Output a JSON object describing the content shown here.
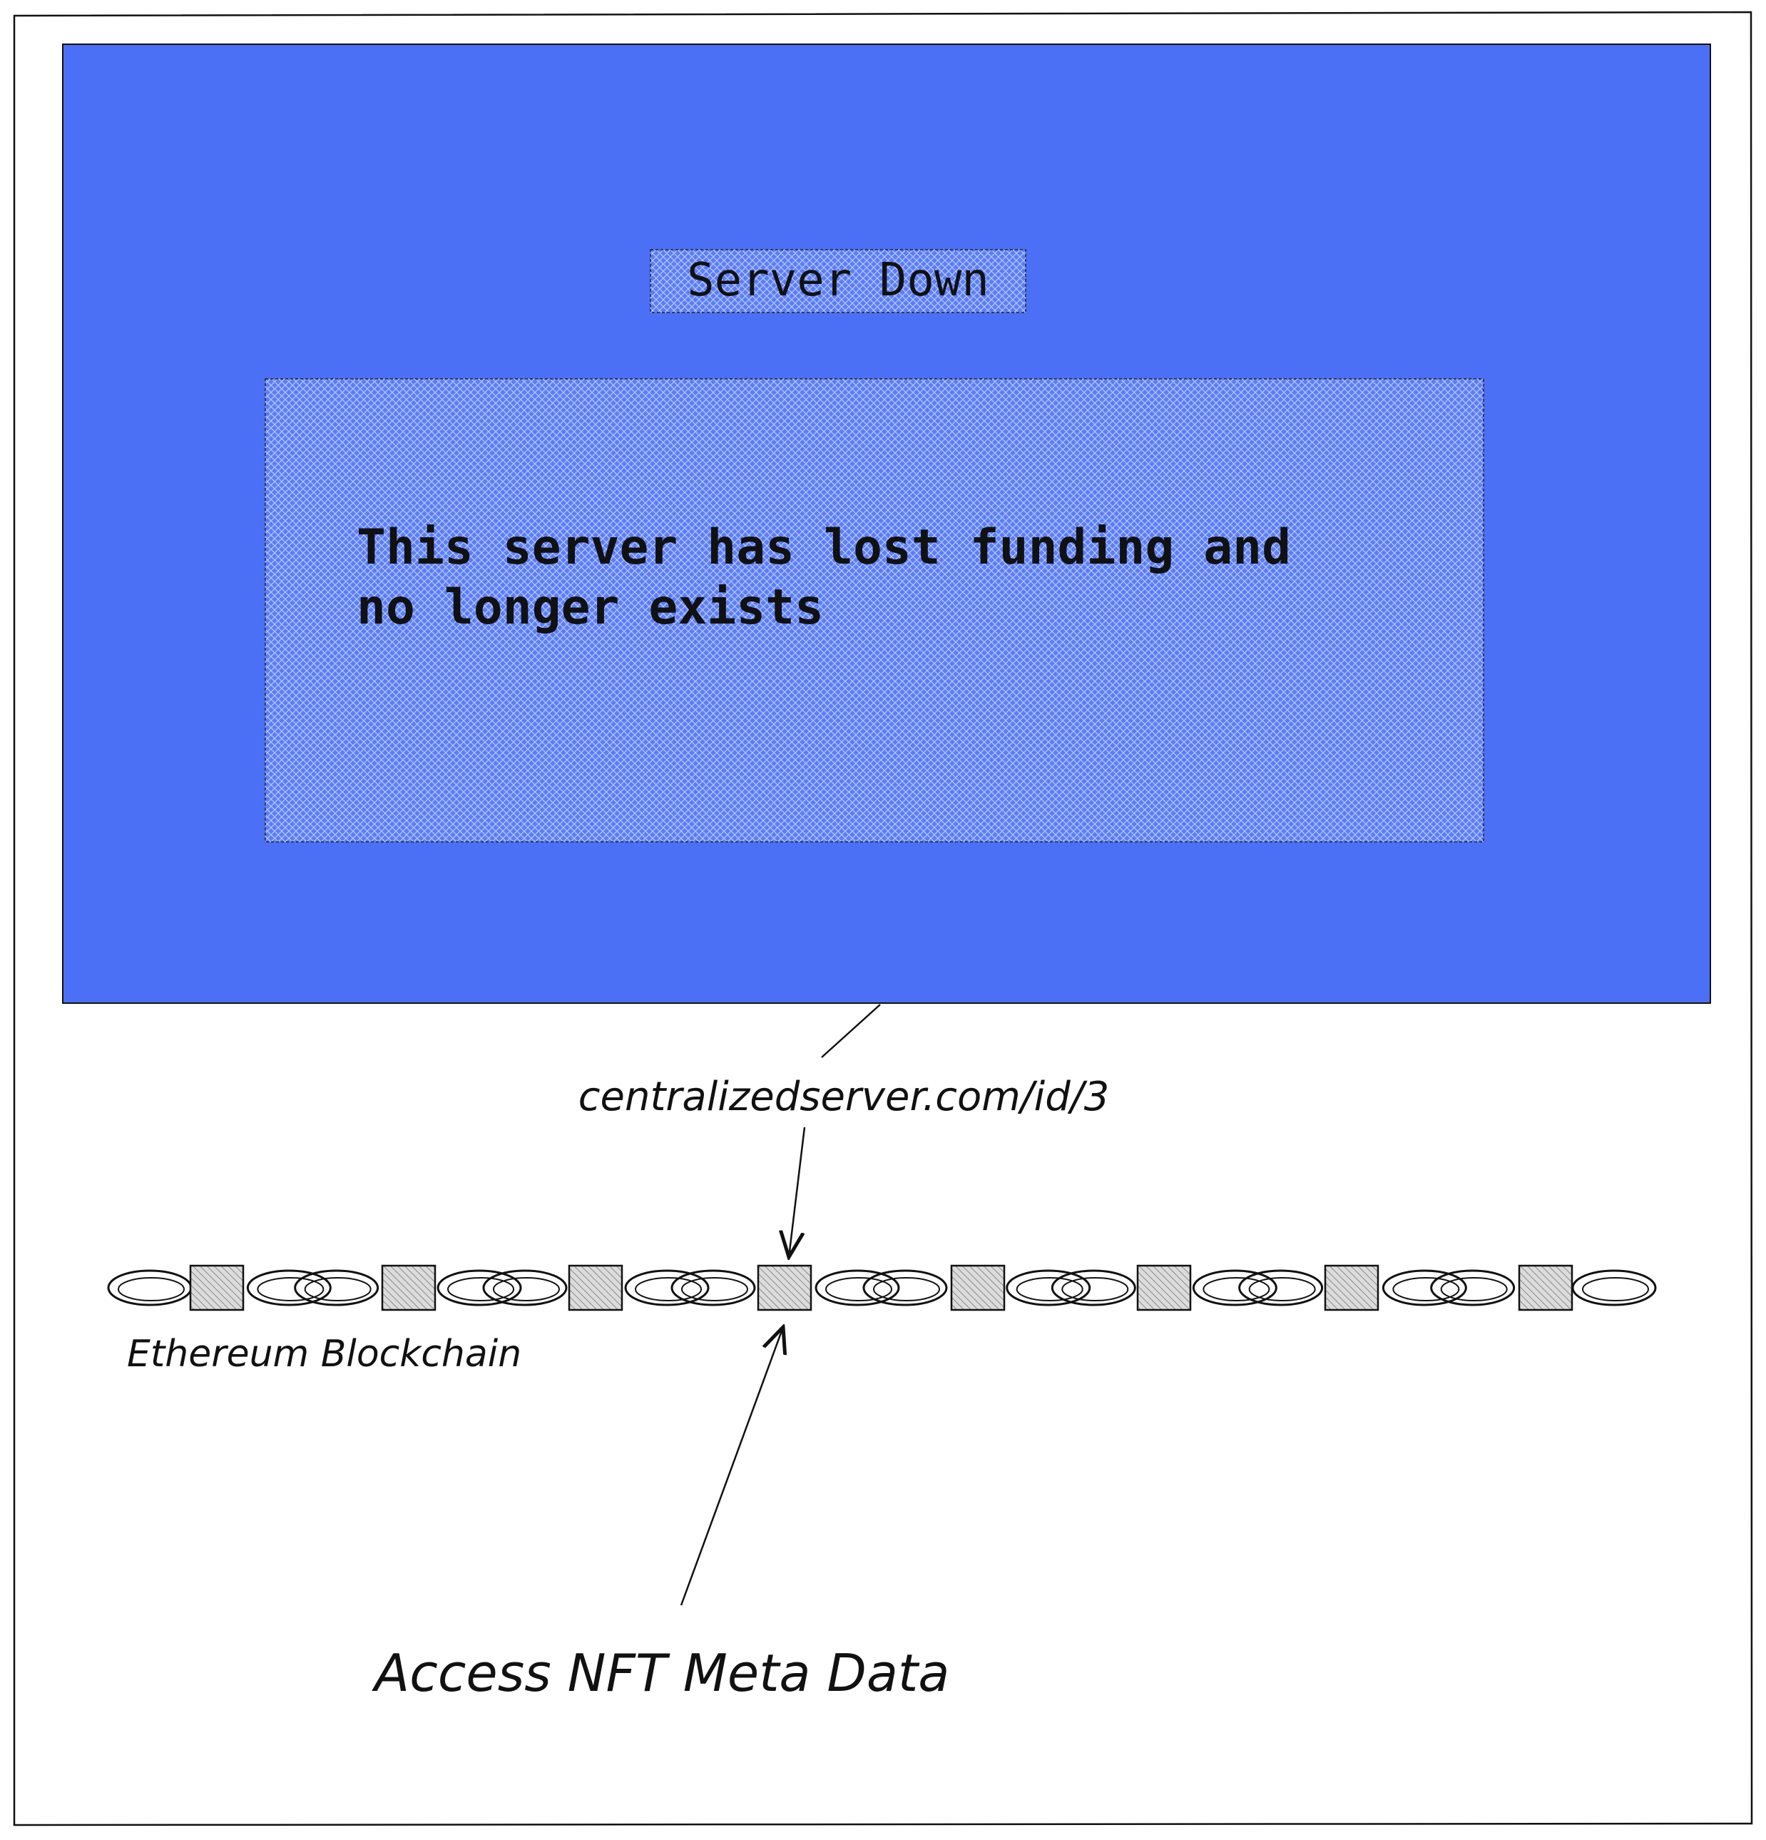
{
  "server_panel": {
    "title": "Server Down",
    "message_line1": "This server has lost funding and",
    "message_line2": "no longer exists",
    "color": "#4B70F5"
  },
  "url_label": "centralizedserver.com/id/3",
  "blockchain": {
    "label": "Ethereum Blockchain",
    "block_count": 8,
    "highlighted_block": 4
  },
  "access_label": "Access NFT Meta Data"
}
